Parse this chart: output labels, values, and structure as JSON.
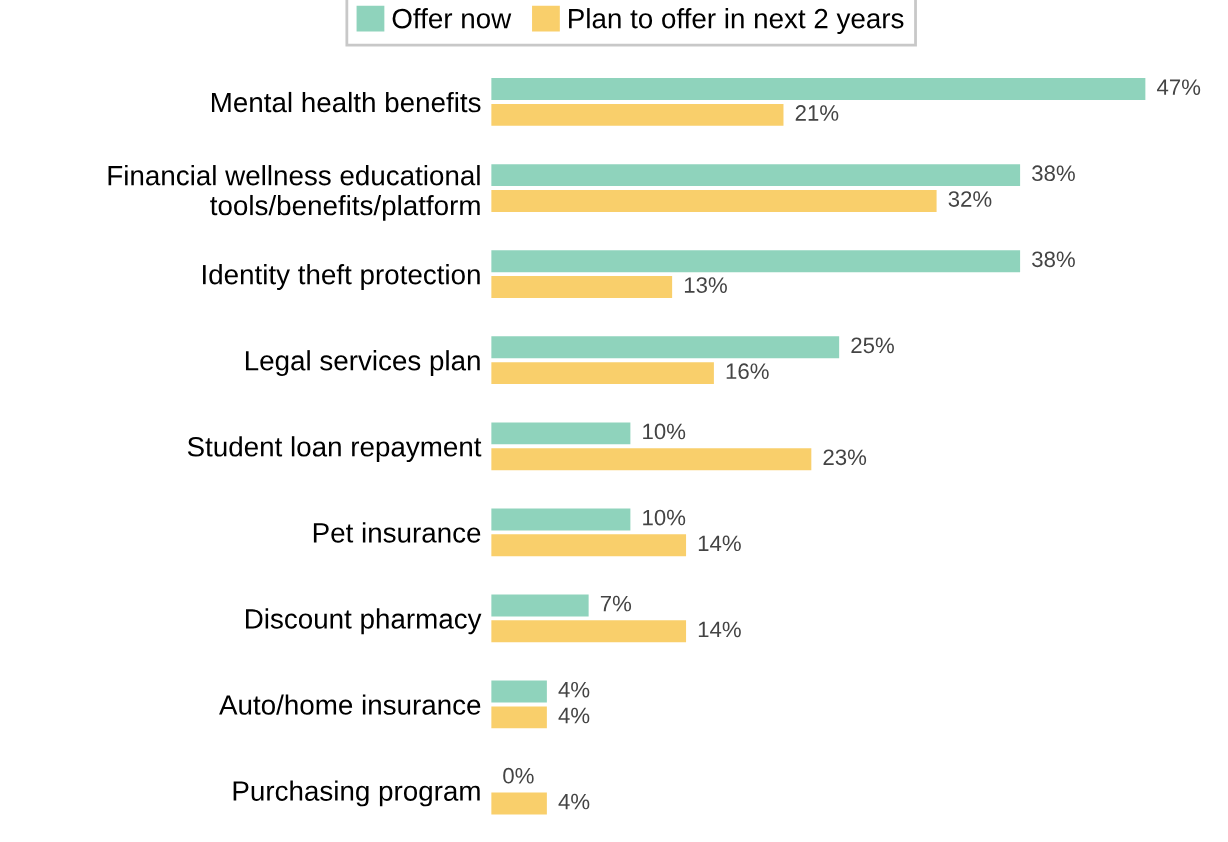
{
  "chart_data": {
    "type": "bar",
    "orientation": "horizontal",
    "legend": "top",
    "grid": false,
    "categories": [
      "Mental health benefits",
      "Financial wellness educational\ntools/benefits/platform",
      "Identity theft protection",
      "Legal services plan",
      "Student loan repayment",
      "Pet insurance",
      "Discount pharmacy",
      "Auto/home insurance",
      "Purchasing program"
    ],
    "series": [
      {
        "name": "Offer now",
        "color": "#8fd3bc",
        "values": [
          47,
          38,
          38,
          25,
          10,
          10,
          7,
          4,
          0
        ],
        "value_labels": [
          "47%",
          "38%",
          "38%",
          "25%",
          "10%",
          "10%",
          "7%",
          "4%",
          "0%"
        ]
      },
      {
        "name": "Plan to offer in next 2 years",
        "color": "#f9cf6b",
        "values": [
          21,
          32,
          13,
          16,
          23,
          14,
          14,
          4,
          4
        ],
        "value_labels": [
          "21%",
          "32%",
          "13%",
          "16%",
          "23%",
          "14%",
          "14%",
          "4%",
          "4%"
        ]
      }
    ]
  }
}
